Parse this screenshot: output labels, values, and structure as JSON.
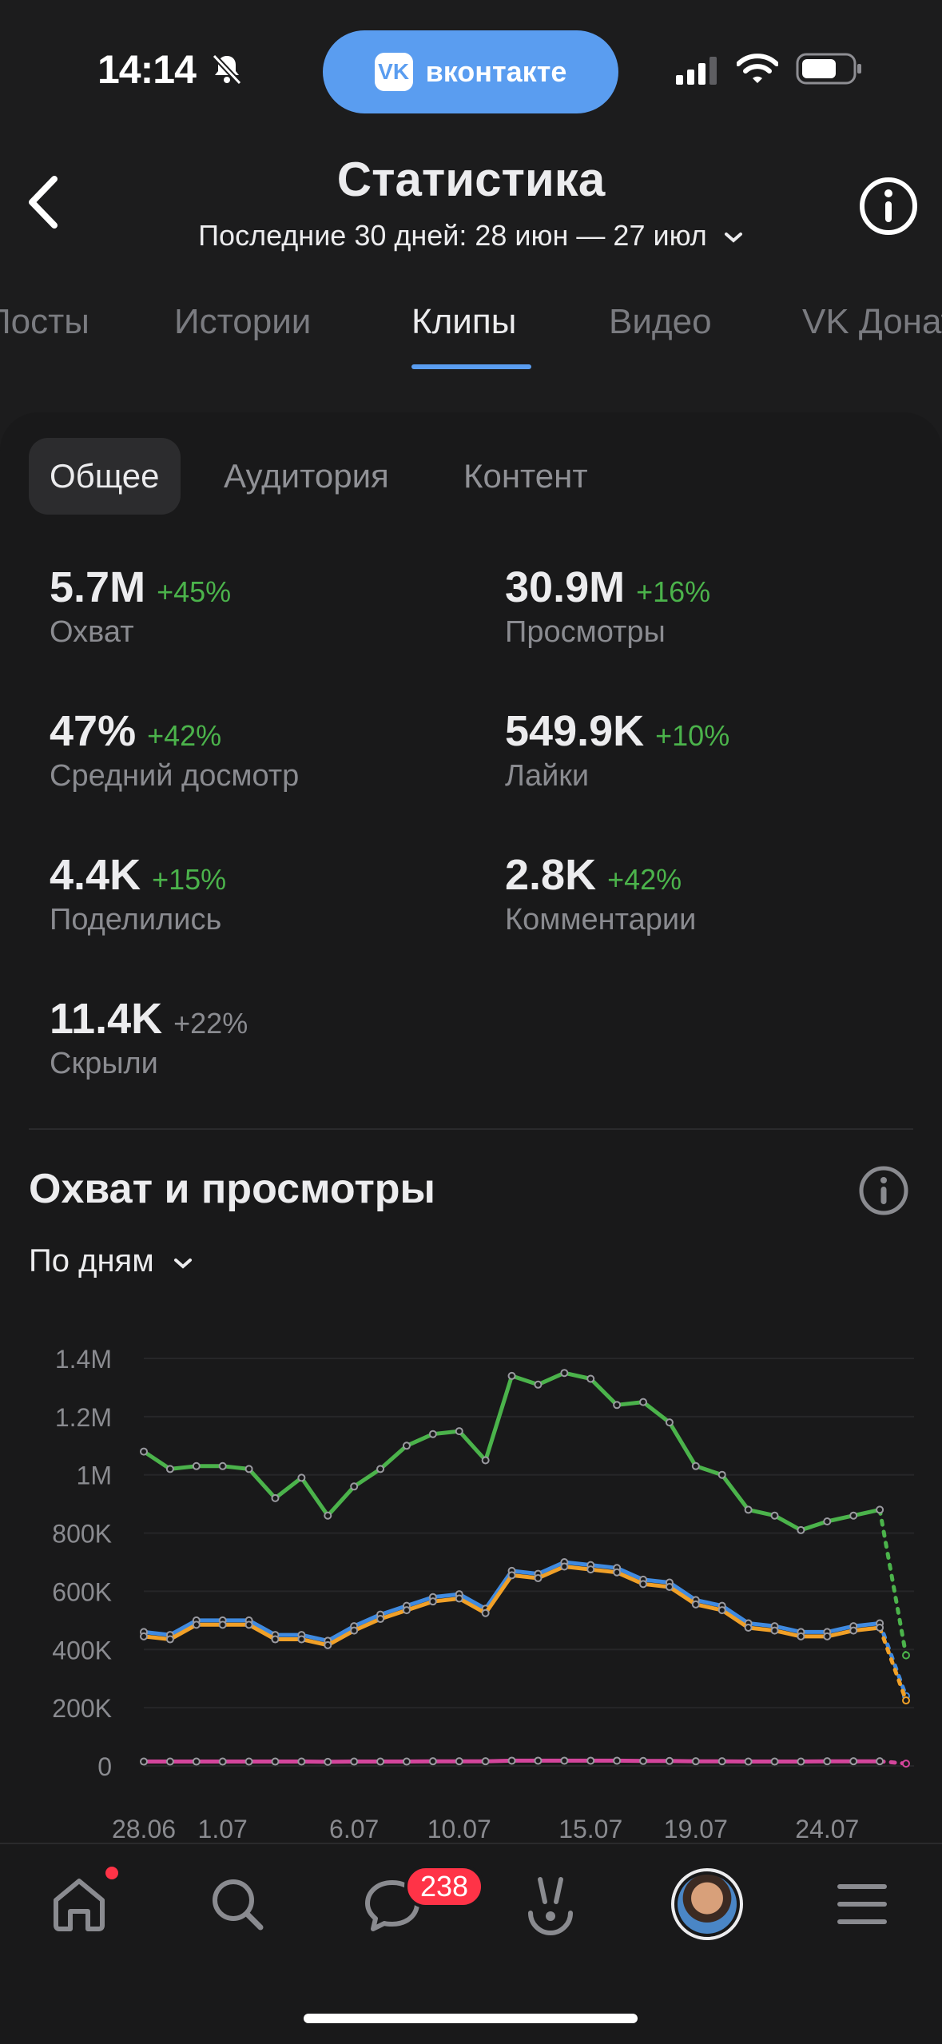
{
  "status_bar": {
    "time": "14:14",
    "app_pill": "вконтакте",
    "app_pill_logo": "VK"
  },
  "header": {
    "title": "Статистика",
    "period": "Последние 30 дней: 28 июн — 27 июл"
  },
  "tabs": [
    "Посты",
    "Истории",
    "Клипы",
    "Видео",
    "VK Донат"
  ],
  "active_tab": "Клипы",
  "segments": [
    "Общее",
    "Аудитория",
    "Контент"
  ],
  "active_segment": "Общее",
  "metrics": [
    {
      "value": "5.7M",
      "delta": "+45%",
      "label": "Охват"
    },
    {
      "value": "30.9M",
      "delta": "+16%",
      "label": "Просмотры"
    },
    {
      "value": "47%",
      "delta": "+42%",
      "label": "Средний досмотр"
    },
    {
      "value": "549.9K",
      "delta": "+10%",
      "label": "Лайки"
    },
    {
      "value": "4.4K",
      "delta": "+15%",
      "label": "Поделились"
    },
    {
      "value": "2.8K",
      "delta": "+42%",
      "label": "Комментарии"
    },
    {
      "value": "11.4K",
      "delta": "+22%",
      "label": "Скрыли"
    }
  ],
  "chart_section": {
    "title": "Охват и просмотры",
    "grouping": "По дням"
  },
  "chart_data": {
    "type": "line",
    "ylim": [
      0,
      1400000
    ],
    "y_ticks": [
      "1.4M",
      "1.2M",
      "1M",
      "800K",
      "600K",
      "400K",
      "200K",
      "0"
    ],
    "x_tick_labels": [
      "28.06",
      "1.07",
      "6.07",
      "10.07",
      "15.07",
      "19.07",
      "24.07"
    ],
    "x_tick_days": [
      0,
      3,
      8,
      12,
      17,
      21,
      26
    ],
    "series": [
      {
        "color": "#4bb34b",
        "values": [
          1080000,
          1020000,
          1030000,
          1030000,
          1020000,
          920000,
          990000,
          860000,
          960000,
          1020000,
          1100000,
          1140000,
          1150000,
          1050000,
          1340000,
          1310000,
          1350000,
          1330000,
          1240000,
          1250000,
          1180000,
          1030000,
          1000000,
          880000,
          860000,
          810000,
          840000,
          860000,
          880000,
          380000
        ]
      },
      {
        "color": "#3f8ae0",
        "values": [
          460000,
          450000,
          500000,
          500000,
          500000,
          450000,
          450000,
          430000,
          480000,
          520000,
          550000,
          580000,
          590000,
          540000,
          670000,
          660000,
          700000,
          690000,
          680000,
          640000,
          630000,
          570000,
          550000,
          490000,
          480000,
          460000,
          460000,
          480000,
          490000,
          240000
        ]
      },
      {
        "color": "#f0a028",
        "values": [
          445000,
          435000,
          485000,
          485000,
          485000,
          435000,
          435000,
          415000,
          465000,
          505000,
          535000,
          565000,
          575000,
          525000,
          655000,
          645000,
          685000,
          675000,
          665000,
          625000,
          615000,
          555000,
          535000,
          475000,
          465000,
          445000,
          445000,
          465000,
          475000,
          225000
        ]
      },
      {
        "color": "#d4459c",
        "values": [
          15000,
          15000,
          15000,
          15000,
          15000,
          15000,
          15000,
          14000,
          15000,
          15000,
          15000,
          16000,
          16000,
          16000,
          18000,
          18000,
          18000,
          18000,
          18000,
          17000,
          17000,
          16000,
          16000,
          15000,
          15000,
          15000,
          16000,
          16000,
          16000,
          8000
        ]
      }
    ]
  }
}
